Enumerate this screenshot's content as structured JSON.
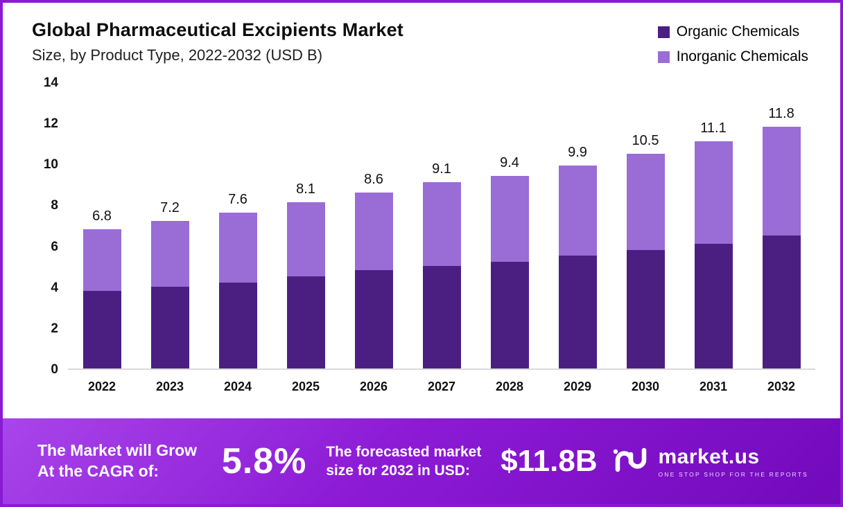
{
  "header": {
    "title": "Global Pharmaceutical Excipients Market",
    "subtitle": "Size, by Product Type, 2022-2032 (USD B)"
  },
  "legend": [
    {
      "label": "Organic Chemicals",
      "color": "#4b1f82"
    },
    {
      "label": "Inorganic Chemicals",
      "color": "#9a6cd6"
    }
  ],
  "chart_data": {
    "type": "bar",
    "stacked": true,
    "title": "Global Pharmaceutical Excipients Market Size, by Product Type, 2022-2032 (USD B)",
    "categories": [
      "2022",
      "2023",
      "2024",
      "2025",
      "2026",
      "2027",
      "2028",
      "2029",
      "2030",
      "2031",
      "2032"
    ],
    "series": [
      {
        "name": "Organic Chemicals",
        "color": "#4b1f82",
        "values": [
          3.8,
          4.0,
          4.2,
          4.5,
          4.8,
          5.0,
          5.2,
          5.5,
          5.8,
          6.1,
          6.5
        ]
      },
      {
        "name": "Inorganic Chemicals",
        "color": "#9a6cd6",
        "values": [
          3.0,
          3.2,
          3.4,
          3.6,
          3.8,
          4.1,
          4.2,
          4.4,
          4.7,
          5.0,
          5.3
        ]
      }
    ],
    "totals": [
      6.8,
      7.2,
      7.6,
      8.1,
      8.6,
      9.1,
      9.4,
      9.9,
      10.5,
      11.1,
      11.8
    ],
    "total_labels": [
      "6.8",
      "7.2",
      "7.6",
      "8.1",
      "8.6",
      "9.1",
      "9.4",
      "9.9",
      "10.5",
      "11.1",
      "11.8"
    ],
    "xlabel": "",
    "ylabel": "",
    "ylim": [
      0,
      14
    ],
    "yticks": [
      14,
      12,
      10,
      8,
      6,
      4,
      2,
      0
    ],
    "grid": false,
    "legend_position": "top-right"
  },
  "footer": {
    "grow_line1": "The Market will Grow",
    "grow_line2": "At the CAGR of:",
    "cagr_value": "5.8%",
    "forecast_line1": "The forecasted market",
    "forecast_line2": "size for 2032 in USD:",
    "forecast_value": "$11.8B",
    "brand_name": "market.us",
    "brand_tagline": "ONE STOP SHOP FOR THE REPORTS"
  }
}
